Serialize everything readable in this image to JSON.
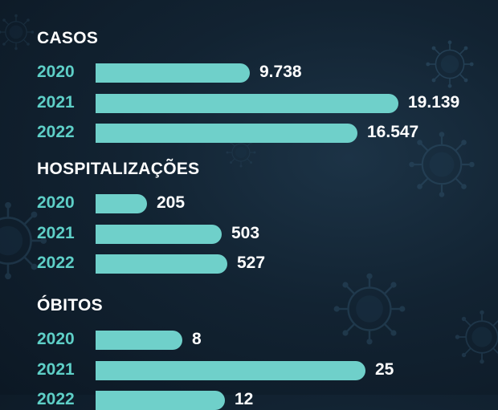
{
  "colors": {
    "bar": "#6fd0ca",
    "year_label": "#5ecfc7",
    "text": "#ffffff",
    "background": "#122332"
  },
  "decoration": {
    "icon": "virus-icon"
  },
  "chart_data": [
    {
      "type": "bar",
      "orientation": "horizontal",
      "title": "CASOS",
      "categories": [
        "2020",
        "2021",
        "2022"
      ],
      "values": [
        9738,
        19139,
        16547
      ],
      "labels": [
        "9.738",
        "19.139",
        "16.547"
      ]
    },
    {
      "type": "bar",
      "orientation": "horizontal",
      "title": "HOSPITALIZAÇÕES",
      "categories": [
        "2020",
        "2021",
        "2022"
      ],
      "values": [
        205,
        503,
        527
      ],
      "labels": [
        "205",
        "503",
        "527"
      ]
    },
    {
      "type": "bar",
      "orientation": "horizontal",
      "title": "ÓBITOS",
      "categories": [
        "2020",
        "2021",
        "2022"
      ],
      "values": [
        8,
        25,
        12
      ],
      "labels": [
        "8",
        "25",
        "12"
      ]
    }
  ]
}
